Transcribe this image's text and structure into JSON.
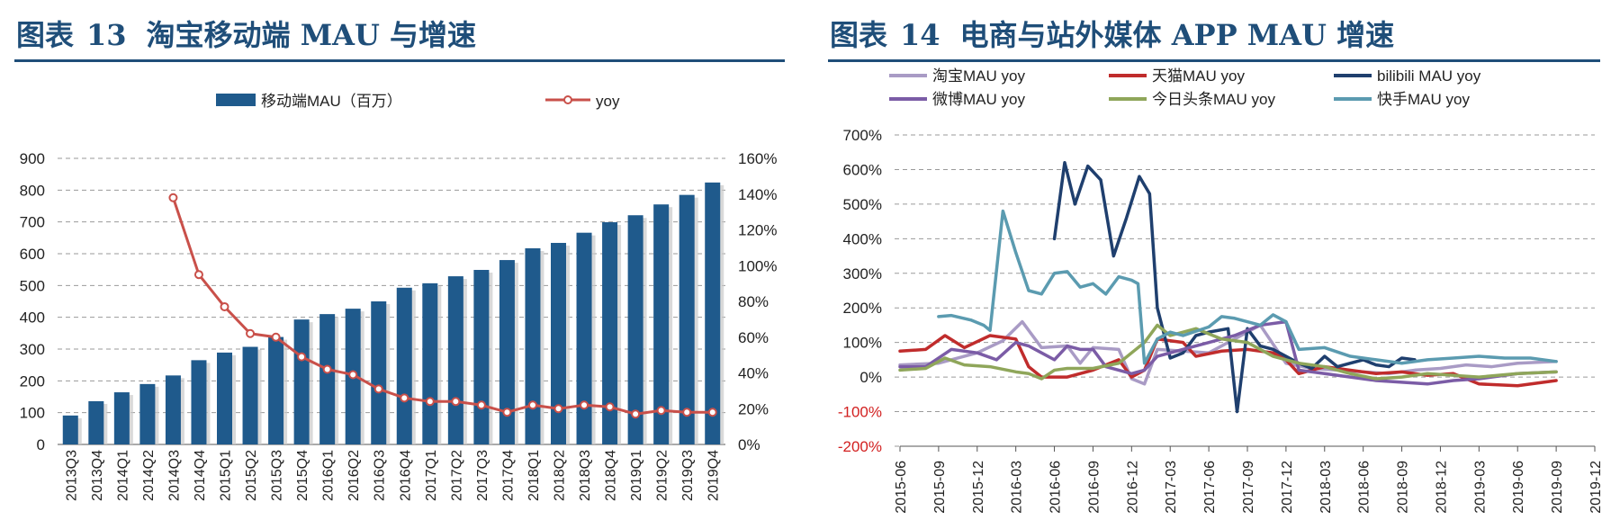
{
  "titles": {
    "left": {
      "prefix": "图表",
      "num": "13",
      "text": "淘宝移动端 MAU 与增速"
    },
    "right": {
      "prefix": "图表",
      "num": "14",
      "text": "电商与站外媒体 APP MAU 增速"
    }
  },
  "chart_data": [
    {
      "type": "bar",
      "categories": [
        "2013Q3",
        "2013Q4",
        "2014Q1",
        "2014Q2",
        "2014Q3",
        "2014Q4",
        "2015Q1",
        "2015Q2",
        "2015Q3",
        "2015Q4",
        "2016Q1",
        "2016Q2",
        "2016Q3",
        "2016Q4",
        "2017Q1",
        "2017Q2",
        "2017Q3",
        "2017Q4",
        "2018Q1",
        "2018Q2",
        "2018Q3",
        "2018Q4",
        "2019Q1",
        "2019Q2",
        "2019Q3",
        "2019Q4"
      ],
      "series": [
        {
          "name": "移动端MAU（百万）",
          "axis": "left",
          "type": "bar",
          "color": "#1f5a8c",
          "values": [
            91,
            136,
            164,
            190,
            217,
            265,
            289,
            307,
            338,
            393,
            410,
            427,
            450,
            493,
            507,
            529,
            549,
            580,
            617,
            634,
            666,
            699,
            721,
            755,
            785,
            824
          ]
        },
        {
          "name": "yoy",
          "axis": "right",
          "type": "line",
          "color": "#c9504a",
          "values": [
            null,
            null,
            null,
            null,
            1.38,
            0.95,
            0.77,
            0.62,
            0.6,
            0.49,
            0.42,
            0.39,
            0.31,
            0.26,
            0.24,
            0.24,
            0.22,
            0.18,
            0.22,
            0.2,
            0.22,
            0.21,
            0.17,
            0.19,
            0.18,
            0.18
          ]
        }
      ],
      "y_left": {
        "ylim": [
          0,
          900
        ],
        "ticks": [
          "0",
          "100",
          "200",
          "300",
          "400",
          "500",
          "600",
          "700",
          "800",
          "900"
        ]
      },
      "y_right": {
        "ylim": [
          0,
          1.6
        ],
        "ticks": [
          "0%",
          "20%",
          "40%",
          "60%",
          "80%",
          "100%",
          "120%",
          "140%",
          "160%"
        ]
      },
      "legend": "top",
      "grid": true
    },
    {
      "type": "line",
      "x": [
        "2015-06",
        "2015-09",
        "2015-12",
        "2016-03",
        "2016-06",
        "2016-09",
        "2016-12",
        "2017-03",
        "2017-06",
        "2017-09",
        "2017-12",
        "2018-03",
        "2018-06",
        "2018-09",
        "2018-12",
        "2019-03",
        "2019-06",
        "2019-09",
        "2019-12"
      ],
      "ylim": [
        -2.0,
        7.0
      ],
      "yticks": [
        "-200%",
        "-100%",
        "0%",
        "100%",
        "200%",
        "300%",
        "400%",
        "500%",
        "600%",
        "700%"
      ],
      "legend": "top",
      "grid": true,
      "series": [
        {
          "name": "淘宝MAU yoy",
          "color": "#a99bc5",
          "points": [
            [
              0,
              0.35
            ],
            [
              3,
              0.4
            ],
            [
              6,
              0.7
            ],
            [
              8,
              1.05
            ],
            [
              9.5,
              1.6
            ],
            [
              11,
              0.85
            ],
            [
              13,
              0.9
            ],
            [
              14,
              0.4
            ],
            [
              15,
              0.85
            ],
            [
              17,
              0.8
            ],
            [
              18,
              -0.05
            ],
            [
              19,
              -0.2
            ],
            [
              20,
              0.8
            ],
            [
              22,
              0.75
            ],
            [
              24,
              0.7
            ],
            [
              26,
              1.1
            ],
            [
              28,
              1.5
            ],
            [
              30,
              0.4
            ],
            [
              32,
              0.25
            ],
            [
              34,
              0.2
            ],
            [
              36,
              0.15
            ],
            [
              38,
              0.1
            ],
            [
              40,
              0.2
            ],
            [
              42,
              0.25
            ],
            [
              44,
              0.35
            ],
            [
              46,
              0.3
            ],
            [
              48,
              0.4
            ],
            [
              51,
              0.45
            ]
          ]
        },
        {
          "name": "天猫MAU yoy",
          "color": "#c02c2c",
          "points": [
            [
              0,
              0.75
            ],
            [
              2,
              0.8
            ],
            [
              3.5,
              1.2
            ],
            [
              5,
              0.85
            ],
            [
              7,
              1.2
            ],
            [
              9,
              1.1
            ],
            [
              10,
              0.3
            ],
            [
              11,
              0.0
            ],
            [
              13,
              0.0
            ],
            [
              15,
              0.2
            ],
            [
              17,
              0.5
            ],
            [
              18,
              0.0
            ],
            [
              19,
              0.2
            ],
            [
              20,
              1.1
            ],
            [
              22,
              1.0
            ],
            [
              23,
              0.6
            ],
            [
              25,
              0.75
            ],
            [
              27,
              0.8
            ],
            [
              29,
              0.7
            ],
            [
              30,
              0.5
            ],
            [
              31,
              0.1
            ],
            [
              33,
              0.3
            ],
            [
              35,
              0.2
            ],
            [
              37,
              0.1
            ],
            [
              39,
              0.15
            ],
            [
              41,
              0.05
            ],
            [
              43,
              0.1
            ],
            [
              45,
              -0.2
            ],
            [
              48,
              -0.25
            ],
            [
              51,
              -0.1
            ]
          ]
        },
        {
          "name": "bilibili MAU yoy",
          "color": "#1f3f6e",
          "points": [
            [
              12,
              4.0
            ],
            [
              12.8,
              6.2
            ],
            [
              13.6,
              5.0
            ],
            [
              14.6,
              6.1
            ],
            [
              15.6,
              5.7
            ],
            [
              16.6,
              3.5
            ],
            [
              17.6,
              4.6
            ],
            [
              18.6,
              5.8
            ],
            [
              19.4,
              5.3
            ],
            [
              20,
              2.0
            ],
            [
              21,
              0.55
            ],
            [
              22,
              0.7
            ],
            [
              23,
              1.2
            ],
            [
              24,
              1.3
            ],
            [
              25.5,
              1.4
            ],
            [
              26.2,
              -1.0
            ],
            [
              27,
              1.4
            ],
            [
              28,
              0.9
            ],
            [
              29,
              0.8
            ],
            [
              30,
              0.6
            ],
            [
              31,
              0.4
            ],
            [
              32,
              0.25
            ],
            [
              33,
              0.6
            ],
            [
              34,
              0.3
            ],
            [
              35,
              0.4
            ],
            [
              36,
              0.5
            ],
            [
              37,
              0.35
            ],
            [
              38,
              0.3
            ],
            [
              39,
              0.55
            ],
            [
              40,
              0.5
            ]
          ]
        },
        {
          "name": "微博MAU yoy",
          "color": "#7b5ca6",
          "points": [
            [
              0,
              0.3
            ],
            [
              2,
              0.3
            ],
            [
              4,
              0.8
            ],
            [
              6,
              0.7
            ],
            [
              7.5,
              0.5
            ],
            [
              9,
              1.0
            ],
            [
              10,
              0.9
            ],
            [
              11,
              0.7
            ],
            [
              12,
              0.5
            ],
            [
              13,
              0.9
            ],
            [
              14,
              0.8
            ],
            [
              15,
              0.8
            ],
            [
              16,
              0.3
            ],
            [
              17,
              0.2
            ],
            [
              18,
              0.1
            ],
            [
              19,
              0.2
            ],
            [
              20,
              0.6
            ],
            [
              22,
              0.8
            ],
            [
              24,
              1.0
            ],
            [
              26,
              1.2
            ],
            [
              28,
              1.5
            ],
            [
              30,
              1.6
            ],
            [
              31,
              0.2
            ],
            [
              33,
              0.1
            ],
            [
              35,
              0.0
            ],
            [
              37,
              -0.1
            ],
            [
              39,
              -0.15
            ],
            [
              41,
              -0.2
            ],
            [
              43,
              -0.1
            ],
            [
              45,
              -0.05
            ],
            [
              48,
              0.1
            ],
            [
              51,
              0.15
            ]
          ]
        },
        {
          "name": "今日头条MAU yoy",
          "color": "#8fa65a",
          "points": [
            [
              0,
              0.2
            ],
            [
              2,
              0.25
            ],
            [
              3.5,
              0.55
            ],
            [
              5,
              0.35
            ],
            [
              7,
              0.3
            ],
            [
              9,
              0.15
            ],
            [
              10,
              0.1
            ],
            [
              11,
              -0.05
            ],
            [
              12,
              0.2
            ],
            [
              13,
              0.25
            ],
            [
              15,
              0.25
            ],
            [
              17,
              0.4
            ],
            [
              18,
              0.7
            ],
            [
              19,
              1.0
            ],
            [
              20,
              1.5
            ],
            [
              21,
              1.2
            ],
            [
              22,
              1.3
            ],
            [
              23,
              1.4
            ],
            [
              25,
              1.1
            ],
            [
              27,
              1.0
            ],
            [
              29,
              0.6
            ],
            [
              30,
              0.5
            ],
            [
              31,
              0.4
            ],
            [
              33,
              0.3
            ],
            [
              35,
              0.1
            ],
            [
              37,
              -0.05
            ],
            [
              39,
              0.0
            ],
            [
              41,
              0.1
            ],
            [
              43,
              0.05
            ],
            [
              45,
              0.0
            ],
            [
              48,
              0.1
            ],
            [
              51,
              0.15
            ]
          ]
        },
        {
          "name": "快手MAU yoy",
          "color": "#5b9bb0",
          "points": [
            [
              3,
              1.75
            ],
            [
              4,
              1.78
            ],
            [
              5.5,
              1.65
            ],
            [
              6.5,
              1.5
            ],
            [
              7,
              1.35
            ],
            [
              8,
              4.8
            ],
            [
              9,
              3.6
            ],
            [
              10,
              2.5
            ],
            [
              11,
              2.4
            ],
            [
              12,
              3.0
            ],
            [
              13,
              3.05
            ],
            [
              14,
              2.6
            ],
            [
              15,
              2.7
            ],
            [
              16,
              2.4
            ],
            [
              17,
              2.9
            ],
            [
              18,
              2.8
            ],
            [
              18.5,
              2.7
            ],
            [
              19,
              0.4
            ],
            [
              20,
              1.1
            ],
            [
              21,
              1.3
            ],
            [
              22,
              1.2
            ],
            [
              24,
              1.45
            ],
            [
              25,
              1.75
            ],
            [
              26,
              1.7
            ],
            [
              28,
              1.5
            ],
            [
              29,
              1.8
            ],
            [
              30,
              1.6
            ],
            [
              31,
              0.8
            ],
            [
              33,
              0.85
            ],
            [
              35,
              0.6
            ],
            [
              37,
              0.5
            ],
            [
              39,
              0.4
            ],
            [
              41,
              0.5
            ],
            [
              43,
              0.55
            ],
            [
              45,
              0.6
            ],
            [
              47,
              0.55
            ],
            [
              49,
              0.55
            ],
            [
              51,
              0.45
            ]
          ]
        }
      ]
    }
  ]
}
